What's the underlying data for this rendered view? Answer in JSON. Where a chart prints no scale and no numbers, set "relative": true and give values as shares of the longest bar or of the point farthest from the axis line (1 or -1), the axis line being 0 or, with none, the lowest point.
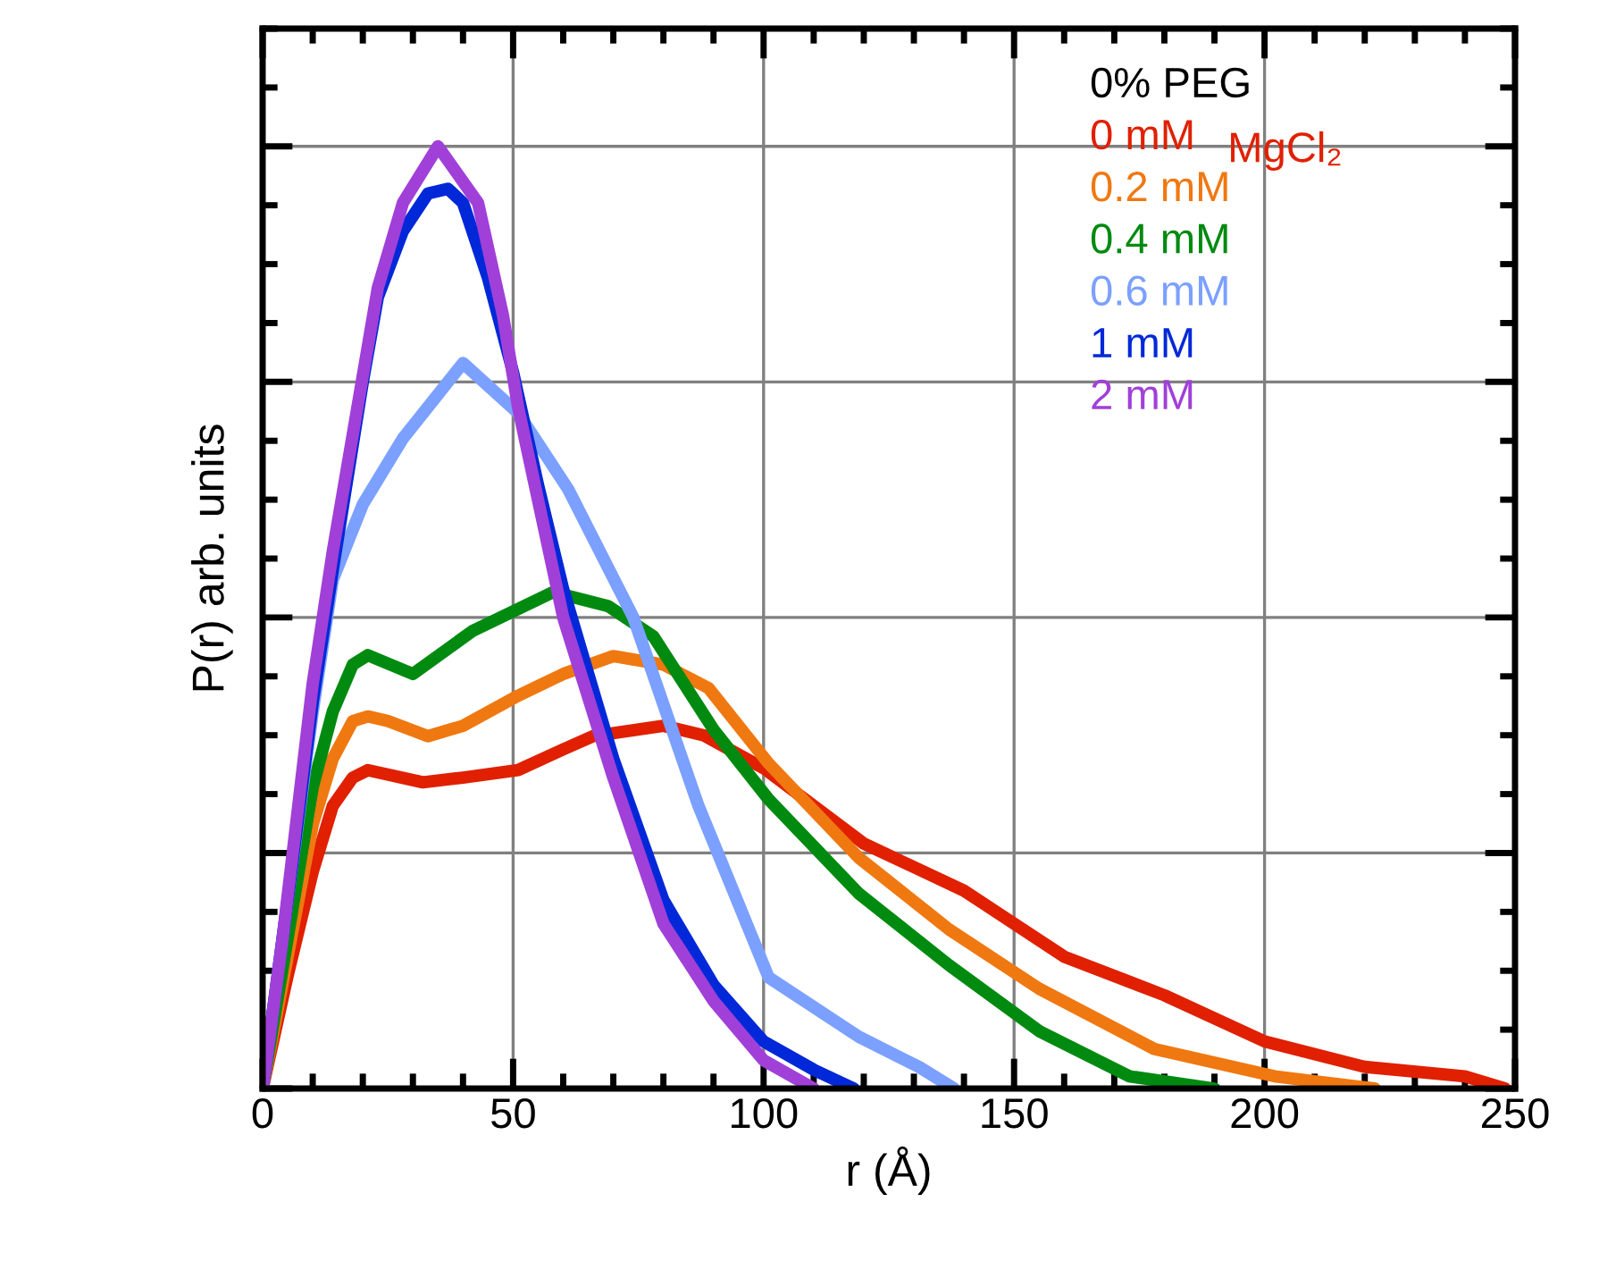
{
  "chart_data": {
    "type": "line",
    "xlabel": "r (Å)",
    "ylabel": "P(r) arb. units",
    "legend_title": "0% PEG",
    "annotations": [
      "MgCl₂"
    ],
    "relative": true,
    "xlim": [
      0,
      250
    ],
    "xticks": [
      0,
      50,
      100,
      150,
      200,
      250
    ],
    "grid": true,
    "legend": "top right",
    "marker": "none",
    "line_style": "solid",
    "series": [
      {
        "name": "0 mM",
        "color": "#e02000",
        "x": [
          0,
          5,
          10,
          14,
          18,
          21,
          32,
          40,
          51,
          60,
          66,
          80,
          88,
          100,
          120,
          140,
          160,
          180,
          200,
          220,
          240,
          248
        ],
        "values": [
          0,
          0.12,
          0.23,
          0.3,
          0.33,
          0.338,
          0.325,
          0.33,
          0.338,
          0.36,
          0.374,
          0.385,
          0.375,
          0.34,
          0.26,
          0.21,
          0.14,
          0.099,
          0.05,
          0.023,
          0.013,
          0
        ]
      },
      {
        "name": "0.2 mM",
        "color": "#f07810",
        "x": [
          0,
          5,
          10,
          14,
          18,
          21,
          25,
          33,
          40,
          51,
          60,
          70,
          80,
          89,
          101,
          119,
          137,
          155,
          178,
          202,
          222
        ],
        "values": [
          0,
          0.14,
          0.28,
          0.35,
          0.39,
          0.395,
          0.39,
          0.374,
          0.385,
          0.417,
          0.44,
          0.459,
          0.45,
          0.425,
          0.345,
          0.245,
          0.169,
          0.106,
          0.042,
          0.013,
          0
        ]
      },
      {
        "name": "0.4 mM",
        "color": "#008a10",
        "x": [
          0,
          5,
          10,
          14,
          18,
          21,
          30,
          42,
          58,
          69,
          78,
          90,
          101,
          119,
          137,
          155,
          173,
          190
        ],
        "values": [
          0,
          0.16,
          0.32,
          0.4,
          0.45,
          0.46,
          0.44,
          0.486,
          0.527,
          0.512,
          0.48,
          0.381,
          0.307,
          0.207,
          0.131,
          0.061,
          0.013,
          0
        ]
      },
      {
        "name": "0.6 mM",
        "color": "#7ba0ff",
        "x": [
          0,
          5,
          10,
          14,
          20,
          28,
          40,
          51,
          61,
          74,
          87,
          101,
          119,
          131,
          138
        ],
        "values": [
          0,
          0.2,
          0.4,
          0.54,
          0.62,
          0.69,
          0.77,
          0.717,
          0.636,
          0.5,
          0.3,
          0.118,
          0.055,
          0.023,
          0
        ]
      },
      {
        "name": "1 mM",
        "color": "#0028d8",
        "x": [
          0,
          5,
          10,
          14,
          20,
          23,
          28,
          33,
          37,
          40,
          45,
          50,
          55,
          60,
          70,
          80,
          90,
          100,
          110,
          118
        ],
        "values": [
          0,
          0.2,
          0.41,
          0.55,
          0.75,
          0.84,
          0.91,
          0.95,
          0.955,
          0.94,
          0.86,
          0.76,
          0.64,
          0.53,
          0.35,
          0.2,
          0.11,
          0.05,
          0.02,
          0
        ]
      },
      {
        "name": "2 mM",
        "color": "#a040d8",
        "x": [
          0,
          4,
          10,
          14,
          23,
          28,
          35,
          43,
          48,
          51,
          60,
          70,
          80,
          90,
          100,
          110
        ],
        "values": [
          0,
          0.16,
          0.43,
          0.57,
          0.85,
          0.94,
          1.0,
          0.94,
          0.82,
          0.723,
          0.5,
          0.33,
          0.175,
          0.093,
          0.03,
          0
        ]
      }
    ]
  }
}
